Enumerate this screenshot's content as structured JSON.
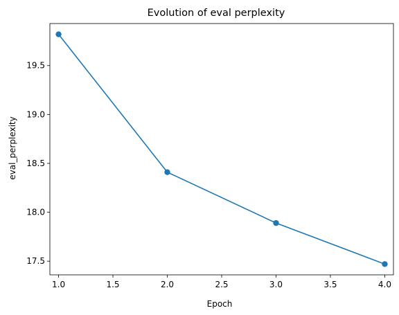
{
  "chart_data": {
    "type": "line",
    "title": "Evolution of eval perplexity",
    "xlabel": "Epoch",
    "ylabel": "eval_perplexity",
    "x": [
      1.0,
      2.0,
      3.0,
      4.0
    ],
    "series": [
      {
        "name": "",
        "values": [
          19.82,
          18.41,
          17.89,
          17.47
        ],
        "color": "#1f77b4",
        "marker": "circle"
      }
    ],
    "xlim": [
      0.92,
      4.08
    ],
    "ylim": [
      17.36,
      19.93
    ],
    "xticks": [
      1.0,
      1.5,
      2.0,
      2.5,
      3.0,
      3.5,
      4.0
    ],
    "xtick_labels": [
      "1.0",
      "1.5",
      "2.0",
      "2.5",
      "3.0",
      "3.5",
      "4.0"
    ],
    "yticks": [
      17.5,
      18.0,
      18.5,
      19.0,
      19.5
    ],
    "ytick_labels": [
      "17.5",
      "18.0",
      "18.5",
      "19.0",
      "19.5"
    ],
    "grid": false,
    "legend": "none"
  }
}
